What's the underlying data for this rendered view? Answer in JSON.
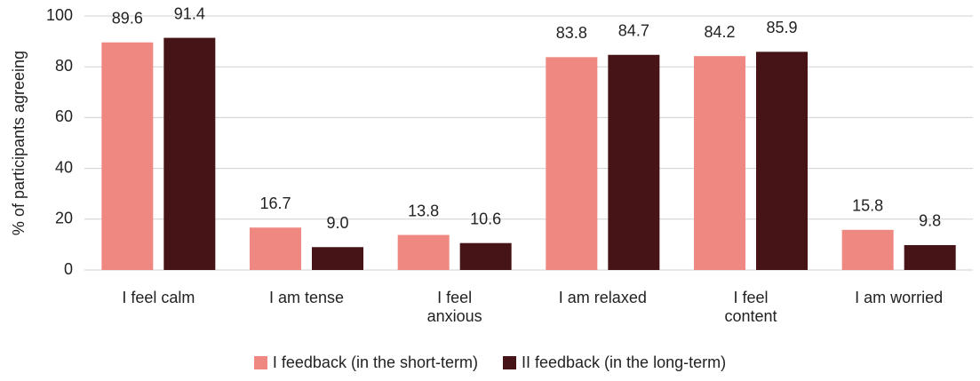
{
  "chart_data": {
    "type": "bar",
    "y_label": "% of participants agreeing",
    "categories": [
      "I feel calm",
      "I am tense",
      "I feel anxious",
      "I am relaxed",
      "I feel content",
      "I am worried"
    ],
    "series": [
      {
        "name": "I feedback (in the short-term)",
        "color": "#f08882",
        "values": [
          89.6,
          16.7,
          13.8,
          83.8,
          84.2,
          15.8
        ],
        "value_labels": [
          "89.6",
          "16.7",
          "13.8",
          "83.8",
          "84.2",
          "15.8"
        ]
      },
      {
        "name": "II feedback (in the long-term)",
        "color": "#461416",
        "values": [
          91.4,
          9.0,
          10.6,
          84.7,
          85.9,
          9.8
        ],
        "value_labels": [
          "91.4",
          "9.0",
          "10.6",
          "84.7",
          "85.9",
          "9.8"
        ]
      }
    ],
    "ylim": [
      0,
      100
    ],
    "yticks": [
      0,
      20,
      40,
      60,
      80,
      100
    ],
    "grid": true,
    "legend": "bottom"
  }
}
